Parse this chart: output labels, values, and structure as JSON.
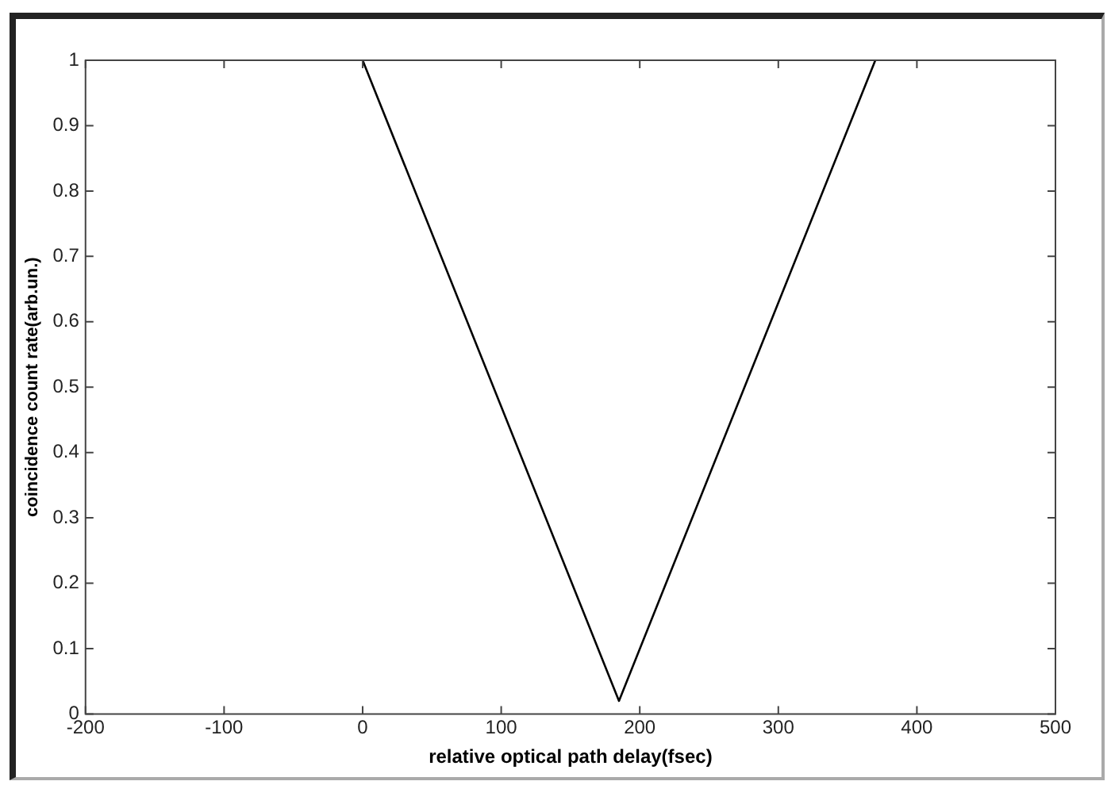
{
  "chart_data": {
    "type": "line",
    "xlabel": "relative optical path delay(fsec)",
    "ylabel": "coincidence count rate(arb.un.)",
    "x": [
      0,
      185,
      370
    ],
    "series": [
      {
        "color": "#000000",
        "values": [
          1,
          0.02,
          1
        ]
      }
    ],
    "xlim": [
      -200,
      500
    ],
    "xticks": [
      -200,
      -100,
      0,
      100,
      200,
      300,
      400,
      500
    ],
    "ylim": [
      0,
      1
    ],
    "yticks": [
      0,
      0.1,
      0.2,
      0.3,
      0.4,
      0.5,
      0.6,
      0.7,
      0.8,
      0.9,
      1
    ],
    "grid": false,
    "legend": false,
    "marker": "none",
    "line_style": "solid"
  }
}
